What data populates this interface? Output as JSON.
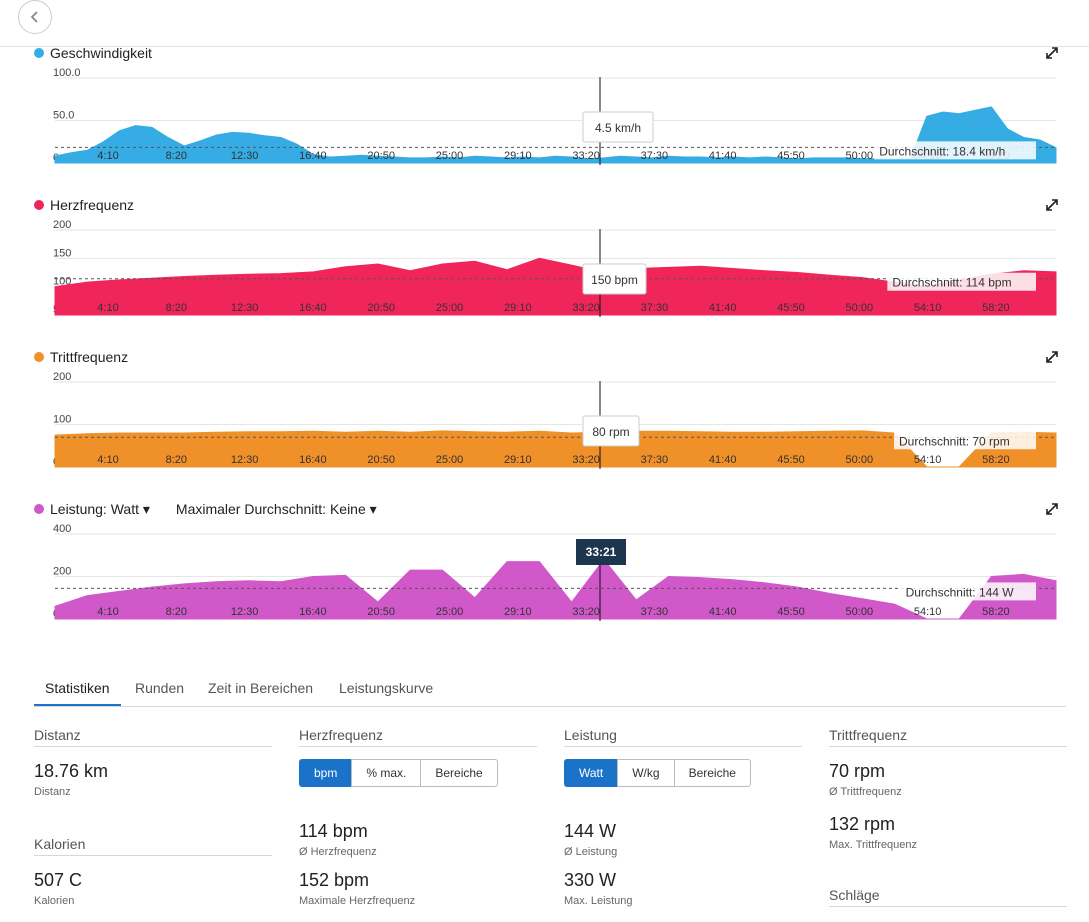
{
  "nav": {
    "back_icon": "chevron-left-icon"
  },
  "x_ticks": [
    "4:10",
    "8:20",
    "12:30",
    "16:40",
    "20:50",
    "25:00",
    "29:10",
    "33:20",
    "37:30",
    "41:40",
    "45:50",
    "50:00",
    "54:10",
    "58:20"
  ],
  "cursor": {
    "time_label": "33:21"
  },
  "charts": {
    "speed": {
      "title": "Geschwindigkeit",
      "color": "#35ace3",
      "y_ticks": [
        "100.0",
        "50.0",
        "0.0"
      ],
      "tooltip": "4.5 km/h",
      "avg_label": "Durchschnitt: 18.4 km/h",
      "chart_data": {
        "type": "area",
        "x_unit": "min",
        "y_unit": "km/h",
        "ylim": [
          0,
          100
        ],
        "avg": 18.4,
        "x": [
          0,
          1,
          2,
          3,
          4,
          5,
          6,
          7,
          8,
          9,
          10,
          11,
          12,
          13,
          14,
          15,
          16,
          17,
          18,
          19,
          20,
          21,
          22,
          23,
          24,
          25,
          26,
          27,
          28,
          29,
          30,
          31,
          32,
          33,
          34,
          35,
          36,
          37,
          38,
          39,
          40,
          41,
          42,
          43,
          44,
          45,
          46,
          47,
          48,
          49,
          50,
          51,
          52,
          53,
          54,
          55,
          56,
          57,
          58,
          59,
          60,
          61,
          62
        ],
        "values": [
          8,
          12,
          15,
          25,
          38,
          44,
          42,
          30,
          20,
          26,
          33,
          36,
          35,
          32,
          30,
          22,
          10,
          7,
          8,
          9,
          8,
          7,
          6,
          6,
          7,
          6,
          8,
          7,
          6,
          7,
          6,
          8,
          7,
          5,
          6,
          8,
          7,
          6,
          8,
          7,
          7,
          6,
          7,
          6,
          7,
          6,
          5,
          6,
          6,
          6,
          5,
          5,
          5,
          6,
          55,
          60,
          58,
          62,
          66,
          40,
          30,
          27,
          18
        ]
      }
    },
    "hr": {
      "title": "Herzfrequenz",
      "color": "#f0265a",
      "y_ticks": [
        "200",
        "150",
        "100",
        "50"
      ],
      "tooltip": "150 bpm",
      "avg_label": "Durchschnitt: 114 bpm",
      "chart_data": {
        "type": "area",
        "x_unit": "min",
        "y_unit": "bpm",
        "ylim": [
          50,
          200
        ],
        "avg": 114,
        "x": [
          0,
          2,
          4,
          6,
          8,
          10,
          12,
          14,
          16,
          18,
          20,
          22,
          24,
          26,
          28,
          30,
          32,
          34,
          36,
          38,
          40,
          42,
          44,
          46,
          48,
          50,
          52,
          54,
          56,
          58,
          60,
          62
        ],
        "values": [
          100,
          108,
          112,
          115,
          118,
          120,
          122,
          123,
          126,
          135,
          140,
          128,
          140,
          145,
          130,
          150,
          138,
          125,
          132,
          134,
          136,
          132,
          128,
          125,
          120,
          116,
          108,
          100,
          112,
          122,
          128,
          126
        ]
      }
    },
    "cad": {
      "title": "Trittfrequenz",
      "color": "#f09028",
      "y_ticks": [
        "200",
        "100",
        "0"
      ],
      "tooltip": "80 rpm",
      "avg_label": "Durchschnitt: 70 rpm",
      "chart_data": {
        "type": "area",
        "x_unit": "min",
        "y_unit": "rpm",
        "ylim": [
          0,
          200
        ],
        "avg": 70,
        "x": [
          0,
          2,
          4,
          6,
          8,
          10,
          12,
          14,
          16,
          18,
          20,
          22,
          24,
          26,
          28,
          30,
          32,
          34,
          36,
          38,
          40,
          42,
          44,
          46,
          48,
          50,
          52,
          54,
          56,
          58,
          60,
          62
        ],
        "values": [
          75,
          78,
          80,
          80,
          80,
          82,
          83,
          83,
          84,
          82,
          84,
          82,
          85,
          83,
          82,
          84,
          80,
          82,
          84,
          84,
          83,
          82,
          82,
          83,
          84,
          85,
          80,
          0,
          0,
          80,
          82,
          80
        ]
      }
    },
    "power": {
      "title": "Leistung: Watt",
      "dropdown": "▾",
      "color": "#d058c8",
      "max_avg_label": "Maximaler Durchschnitt: Keine",
      "y_ticks": [
        "400",
        "200",
        "0"
      ],
      "avg_label": "Durchschnitt: 144 W",
      "chart_data": {
        "type": "area",
        "x_unit": "min",
        "y_unit": "W",
        "ylim": [
          0,
          400
        ],
        "avg": 144,
        "x": [
          0,
          2,
          4,
          6,
          8,
          10,
          12,
          14,
          16,
          18,
          20,
          22,
          24,
          26,
          28,
          30,
          32,
          34,
          36,
          38,
          40,
          42,
          44,
          46,
          48,
          50,
          52,
          54,
          56,
          58,
          60,
          62
        ],
        "values": [
          60,
          110,
          130,
          150,
          165,
          175,
          180,
          175,
          200,
          205,
          80,
          230,
          230,
          100,
          270,
          270,
          80,
          280,
          90,
          200,
          195,
          185,
          170,
          150,
          120,
          95,
          70,
          0,
          0,
          200,
          210,
          180
        ]
      }
    }
  },
  "tabs": [
    "Statistiken",
    "Runden",
    "Zeit in Bereichen",
    "Leistungskurve"
  ],
  "stats": {
    "distance": {
      "header": "Distanz",
      "value": "18.76 km",
      "label": "Distanz"
    },
    "calories": {
      "header": "Kalorien",
      "value": "507 C",
      "label": "Kalorien"
    },
    "heart_rate": {
      "header": "Herzfrequenz",
      "buttons": [
        "bpm",
        "% max.",
        "Bereiche"
      ],
      "avg_value": "114 bpm",
      "avg_label": "Ø Herzfrequenz",
      "max_value": "152 bpm",
      "max_label": "Maximale Herzfrequenz"
    },
    "power": {
      "header": "Leistung",
      "buttons": [
        "Watt",
        "W/kg",
        "Bereiche"
      ],
      "avg_value": "144 W",
      "avg_label": "Ø Leistung",
      "max_value": "330 W",
      "max_label": "Max. Leistung"
    },
    "cadence": {
      "header": "Trittfrequenz",
      "avg_value": "70 rpm",
      "avg_label": "Ø Trittfrequenz",
      "max_value": "132 rpm",
      "max_label": "Max. Trittfrequenz",
      "strokes_header": "Schläge"
    }
  }
}
